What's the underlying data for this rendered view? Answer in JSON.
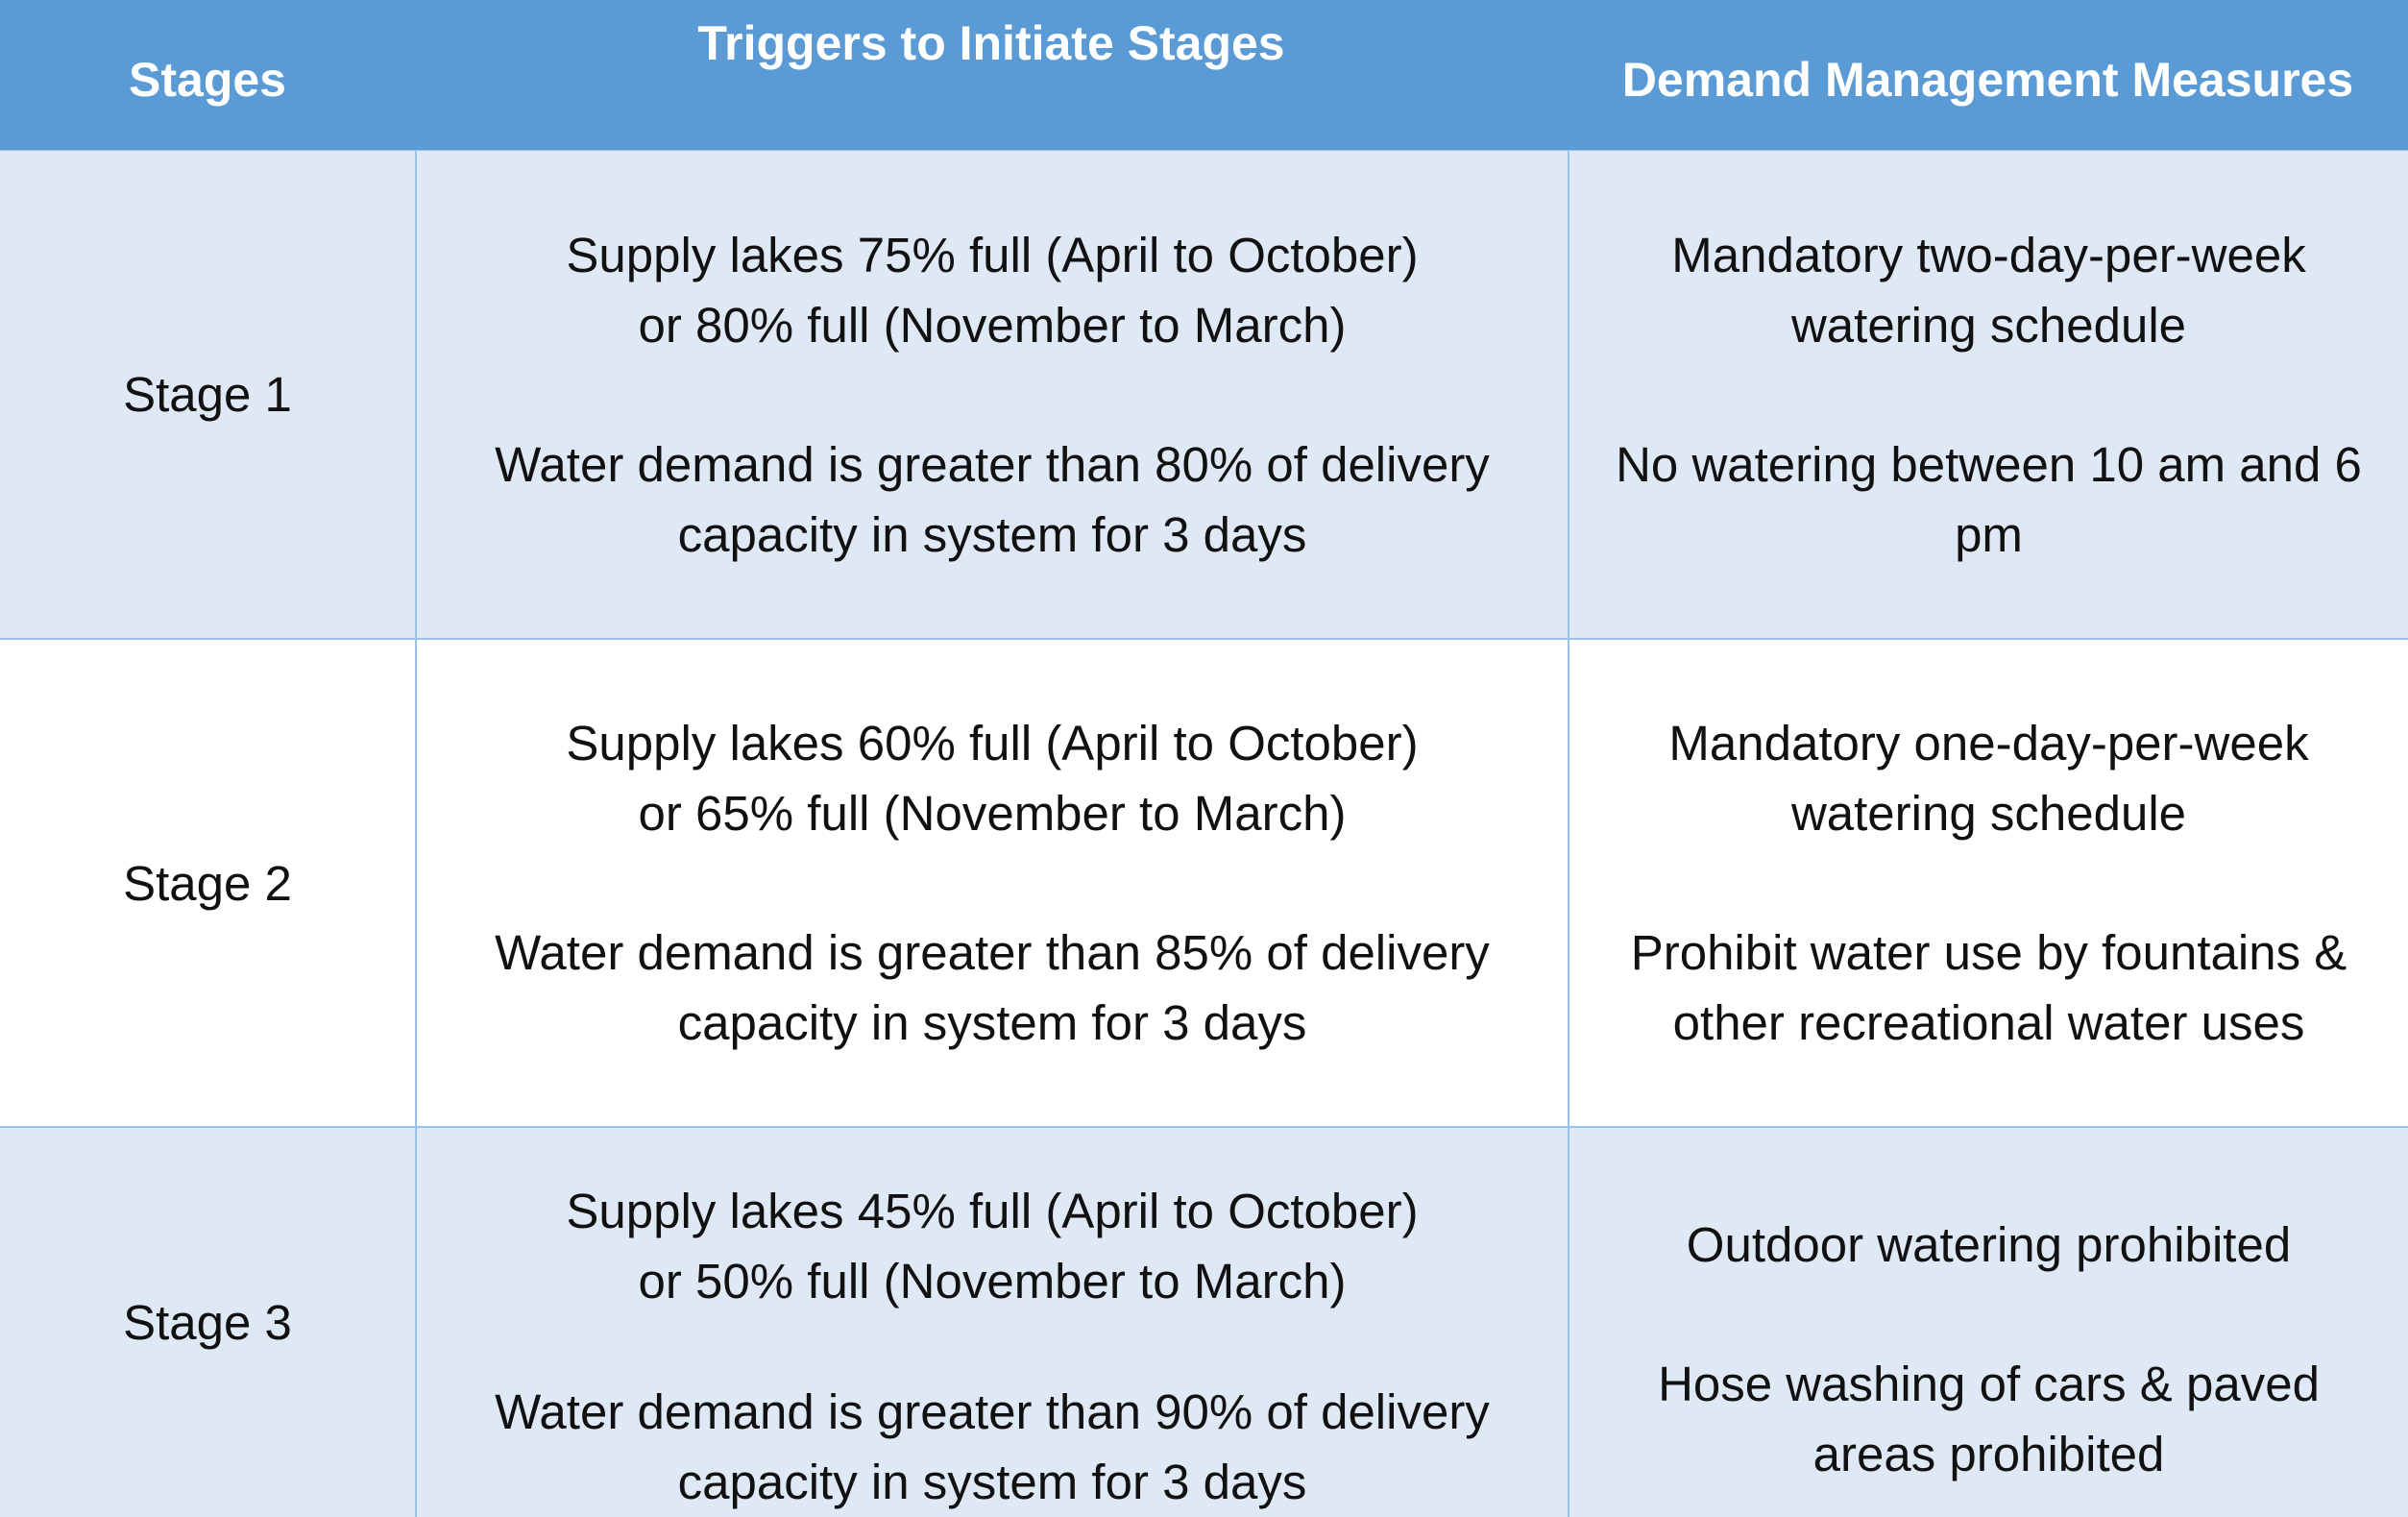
{
  "header": {
    "col1": "Stages",
    "col2": "Triggers to Initiate Stages",
    "col3": "Demand Management Measures"
  },
  "rows": [
    {
      "stage": "Stage 1",
      "triggers": [
        "Supply lakes 75% full (April to October)\nor 80% full (November to March)",
        "Water demand is greater than 80% of delivery\ncapacity in system for 3 days"
      ],
      "measures": [
        "Mandatory two-day-per-week\nwatering schedule",
        "No watering between 10 am and 6\npm"
      ]
    },
    {
      "stage": "Stage 2",
      "triggers": [
        "Supply lakes 60% full (April to October)\nor 65% full (November to March)",
        "Water demand is greater than 85% of delivery\ncapacity in system for 3 days"
      ],
      "measures": [
        "Mandatory one-day-per-week\nwatering schedule",
        "Prohibit water use by fountains &\nother recreational water uses"
      ]
    },
    {
      "stage": "Stage 3",
      "triggers": [
        "Supply lakes 45% full (April to October)\nor 50% full (November to March)",
        "Water demand is greater than 90% of delivery\ncapacity in system for 3 days"
      ],
      "measures": [
        "Outdoor watering prohibited",
        "Hose washing of cars & paved\nareas prohibited"
      ]
    }
  ]
}
